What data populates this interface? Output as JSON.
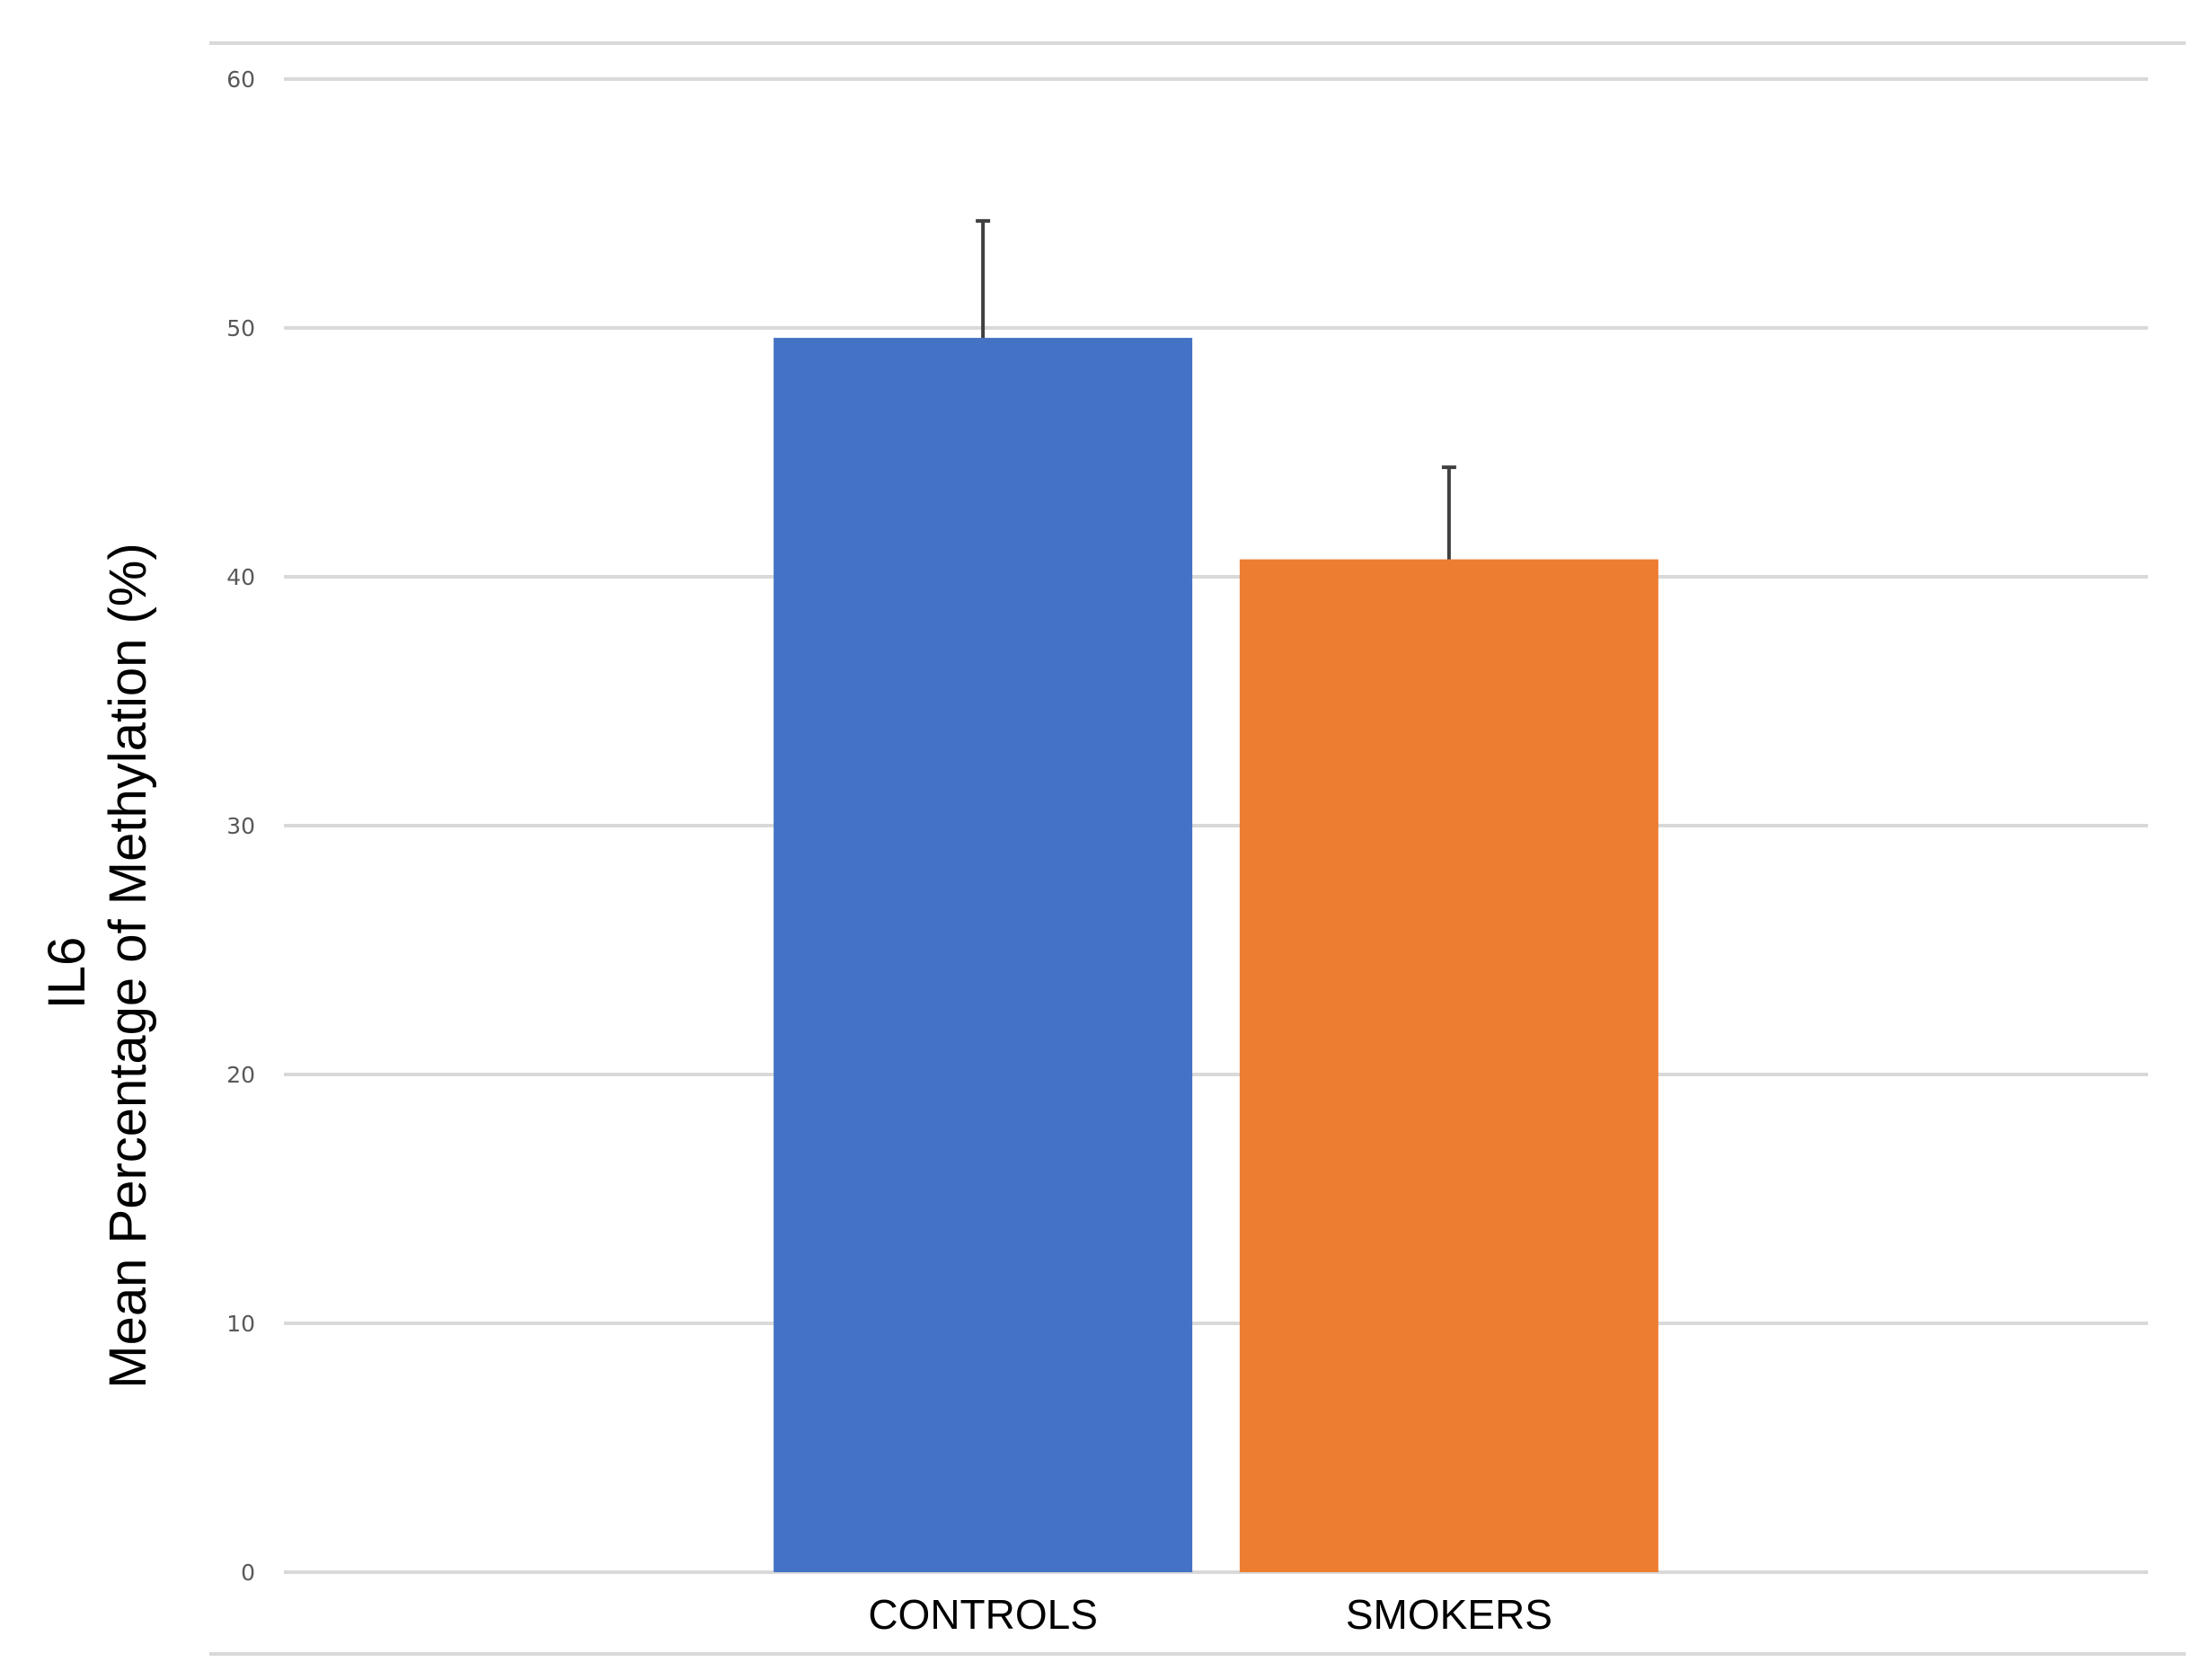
{
  "chart_data": {
    "type": "bar",
    "title": "",
    "xlabel": "",
    "ylabel": [
      "IL6",
      "Mean Percentage of Methylation (%)"
    ],
    "categories": [
      "CONTROLS",
      "SMOKERS"
    ],
    "values": [
      49.6,
      40.7
    ],
    "error_upper": [
      4.7,
      3.7
    ],
    "colors": [
      "#4472C4",
      "#ED7D31"
    ],
    "error_bar_color": "#404040",
    "grid_color": "#D9D9D9",
    "ylim": [
      0,
      60
    ],
    "yticks": [
      "0",
      "10",
      "20",
      "30",
      "40",
      "50",
      "60"
    ],
    "grid": true,
    "legend": "none"
  }
}
